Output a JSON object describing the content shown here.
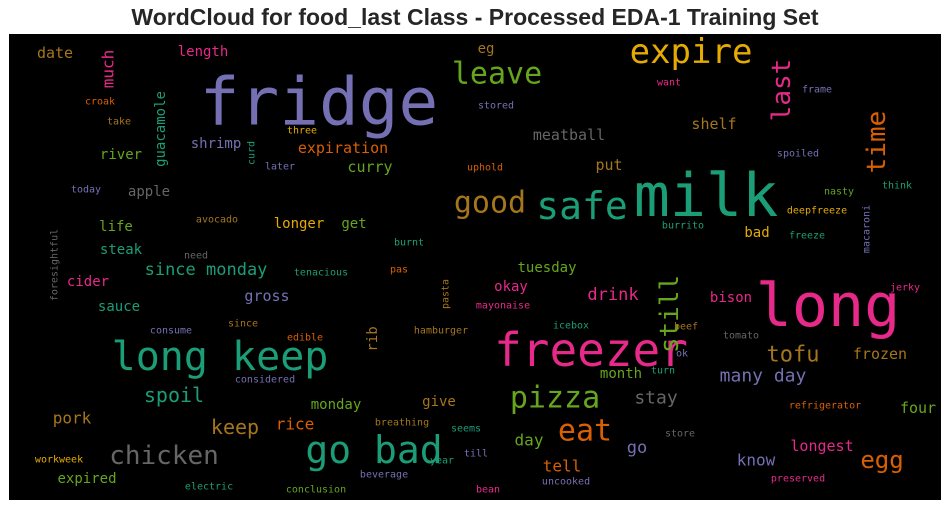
{
  "chart_data": {
    "type": "wordcloud",
    "title": "WordCloud for food_last Class - Processed EDA-1 Training Set",
    "background": "#000000",
    "palette": [
      "#7570b3",
      "#1b9e77",
      "#e7298a",
      "#d95f02",
      "#66a61e",
      "#e6ab02",
      "#a6761d",
      "#666666"
    ],
    "words": [
      {
        "text": "fridge",
        "color": "#7570b3"
      },
      {
        "text": "milk",
        "color": "#1b9e77"
      },
      {
        "text": "long",
        "color": "#e7298a"
      },
      {
        "text": "freezer",
        "color": "#e7298a"
      },
      {
        "text": "long keep",
        "color": "#1b9e77"
      },
      {
        "text": "go bad",
        "color": "#1b9e77"
      },
      {
        "text": "expire",
        "color": "#e6ab02"
      },
      {
        "text": "safe",
        "color": "#1b9e77"
      },
      {
        "text": "leave",
        "color": "#66a61e"
      },
      {
        "text": "pizza",
        "color": "#66a61e"
      },
      {
        "text": "eat",
        "color": "#d95f02"
      },
      {
        "text": "good",
        "color": "#a6761d"
      },
      {
        "text": "chicken",
        "color": "#666666"
      },
      {
        "text": "last",
        "color": "#e7298a"
      },
      {
        "text": "time",
        "color": "#d95f02"
      },
      {
        "text": "still",
        "color": "#66a61e"
      },
      {
        "text": "egg",
        "color": "#d95f02"
      },
      {
        "text": "tofu",
        "color": "#a6761d"
      },
      {
        "text": "spoil",
        "color": "#1b9e77"
      },
      {
        "text": "keep",
        "color": "#a6761d"
      },
      {
        "text": "many day",
        "color": "#7570b3"
      },
      {
        "text": "stay",
        "color": "#666666"
      },
      {
        "text": "since monday",
        "color": "#1b9e77"
      },
      {
        "text": "guacamole",
        "color": "#1b9e77"
      },
      {
        "text": "much",
        "color": "#e7298a"
      },
      {
        "text": "meatball",
        "color": "#666666"
      },
      {
        "text": "expiration",
        "color": "#d95f02"
      },
      {
        "text": "shrimp",
        "color": "#7570b3"
      },
      {
        "text": "shelf",
        "color": "#a6761d"
      },
      {
        "text": "curry",
        "color": "#66a61e"
      },
      {
        "text": "put",
        "color": "#a6761d"
      },
      {
        "text": "river",
        "color": "#66a61e"
      },
      {
        "text": "apple",
        "color": "#666666"
      },
      {
        "text": "drink",
        "color": "#e7298a"
      },
      {
        "text": "rice",
        "color": "#d95f02"
      },
      {
        "text": "pork",
        "color": "#a6761d"
      },
      {
        "text": "day",
        "color": "#66a61e"
      },
      {
        "text": "tell",
        "color": "#d95f02"
      },
      {
        "text": "go",
        "color": "#7570b3"
      },
      {
        "text": "know",
        "color": "#7570b3"
      },
      {
        "text": "frozen",
        "color": "#a6761d"
      },
      {
        "text": "longest",
        "color": "#e7298a"
      },
      {
        "text": "four",
        "color": "#66a61e"
      },
      {
        "text": "date",
        "color": "#a6761d"
      },
      {
        "text": "length",
        "color": "#e7298a"
      },
      {
        "text": "eg",
        "color": "#a6761d"
      },
      {
        "text": "life",
        "color": "#66a61e"
      },
      {
        "text": "steak",
        "color": "#1b9e77"
      },
      {
        "text": "cider",
        "color": "#e7298a"
      },
      {
        "text": "sauce",
        "color": "#1b9e77"
      },
      {
        "text": "longer",
        "color": "#e6ab02"
      },
      {
        "text": "get",
        "color": "#66a61e"
      },
      {
        "text": "tuesday",
        "color": "#66a61e"
      },
      {
        "text": "okay",
        "color": "#e7298a"
      },
      {
        "text": "gross",
        "color": "#7570b3"
      },
      {
        "text": "bison",
        "color": "#e7298a"
      },
      {
        "text": "bad",
        "color": "#e6ab02"
      },
      {
        "text": "month",
        "color": "#66a61e"
      },
      {
        "text": "monday",
        "color": "#66a61e"
      },
      {
        "text": "give",
        "color": "#a6761d"
      },
      {
        "text": "expired",
        "color": "#66a61e"
      },
      {
        "text": "rib",
        "color": "#a6761d"
      },
      {
        "text": "croak",
        "color": "#d95f02"
      },
      {
        "text": "take",
        "color": "#a6761d"
      },
      {
        "text": "three",
        "color": "#e6ab02"
      },
      {
        "text": "curd",
        "color": "#1b9e77"
      },
      {
        "text": "later",
        "color": "#7570b3"
      },
      {
        "text": "uphold",
        "color": "#d95f02"
      },
      {
        "text": "stored",
        "color": "#7570b3"
      },
      {
        "text": "want",
        "color": "#e7298a"
      },
      {
        "text": "frame",
        "color": "#7570b3"
      },
      {
        "text": "spoiled",
        "color": "#7570b3"
      },
      {
        "text": "think",
        "color": "#1b9e77"
      },
      {
        "text": "nasty",
        "color": "#66a61e"
      },
      {
        "text": "deepfreeze",
        "color": "#e6ab02"
      },
      {
        "text": "macaroni",
        "color": "#7570b3"
      },
      {
        "text": "freeze",
        "color": "#1b9e77"
      },
      {
        "text": "burrito",
        "color": "#1b9e77"
      },
      {
        "text": "today",
        "color": "#7570b3"
      },
      {
        "text": "avocado",
        "color": "#a6761d"
      },
      {
        "text": "need",
        "color": "#666666"
      },
      {
        "text": "foresightful",
        "color": "#666666"
      },
      {
        "text": "burnt",
        "color": "#1b9e77"
      },
      {
        "text": "tenacious",
        "color": "#1b9e77"
      },
      {
        "text": "pas",
        "color": "#d95f02"
      },
      {
        "text": "pasta",
        "color": "#a6761d"
      },
      {
        "text": "mayonaise",
        "color": "#e7298a"
      },
      {
        "text": "jerky",
        "color": "#e7298a"
      },
      {
        "text": "consume",
        "color": "#7570b3"
      },
      {
        "text": "since",
        "color": "#a6761d"
      },
      {
        "text": "edible",
        "color": "#d95f02"
      },
      {
        "text": "hamburger",
        "color": "#a6761d"
      },
      {
        "text": "icebox",
        "color": "#1b9e77"
      },
      {
        "text": "beef",
        "color": "#a6761d"
      },
      {
        "text": "tomato",
        "color": "#666666"
      },
      {
        "text": "ok",
        "color": "#7570b3"
      },
      {
        "text": "turn",
        "color": "#1b9e77"
      },
      {
        "text": "considered",
        "color": "#7570b3"
      },
      {
        "text": "breathing",
        "color": "#a6761d"
      },
      {
        "text": "seems",
        "color": "#1b9e77"
      },
      {
        "text": "store",
        "color": "#666666"
      },
      {
        "text": "refrigerator",
        "color": "#d95f02"
      },
      {
        "text": "workweek",
        "color": "#e6ab02"
      },
      {
        "text": "year",
        "color": "#1b9e77"
      },
      {
        "text": "till",
        "color": "#7570b3"
      },
      {
        "text": "beverage",
        "color": "#7570b3"
      },
      {
        "text": "electric",
        "color": "#1b9e77"
      },
      {
        "text": "conclusion",
        "color": "#66a61e"
      },
      {
        "text": "bean",
        "color": "#e7298a"
      },
      {
        "text": "uncooked",
        "color": "#7570b3"
      },
      {
        "text": "preserved",
        "color": "#e7298a"
      }
    ]
  }
}
